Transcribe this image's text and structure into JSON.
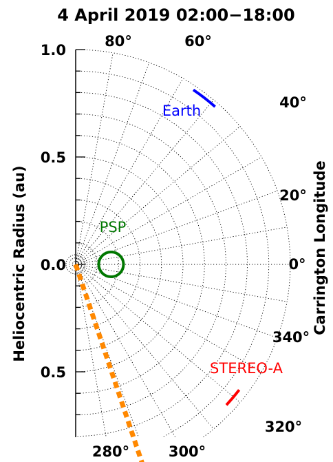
{
  "chart_data": {
    "type": "polar",
    "title": "4 April 2019 02:00−18:00",
    "ylabel": "Heliocentric Radius (au)",
    "right_label": "Carrington Longitude",
    "r_range": [
      0,
      1.0
    ],
    "rings": [
      0.1,
      0.2,
      0.3,
      0.4,
      0.5,
      0.6,
      0.7,
      0.8,
      0.9,
      1.0
    ],
    "spokes_deg": [
      -80,
      -70,
      -60,
      -50,
      -40,
      -30,
      -20,
      -10,
      0,
      10,
      20,
      30,
      40,
      50,
      60,
      70,
      80
    ],
    "ytick_labels": [
      {
        "r": 1.0,
        "side": "top",
        "text": "1.0"
      },
      {
        "r": 0.5,
        "side": "top",
        "text": "0.5"
      },
      {
        "r": 0.0,
        "side": "mid",
        "text": "0.0"
      },
      {
        "r": 0.5,
        "side": "bottom",
        "text": "0.5"
      }
    ],
    "lon_labels": [
      {
        "text": "80°",
        "angle": 80
      },
      {
        "text": "60°",
        "angle": 60
      },
      {
        "text": "40°",
        "angle": 40
      },
      {
        "text": "20°",
        "angle": 20
      },
      {
        "text": "0°",
        "angle": 0
      },
      {
        "text": "340°",
        "angle": -20
      },
      {
        "text": "320°",
        "angle": -40
      },
      {
        "text": "300°",
        "angle": -60
      },
      {
        "text": "280°",
        "angle": -80
      }
    ],
    "series": [
      {
        "name": "Earth",
        "color": "#0000ff",
        "style": "arc",
        "r": 0.98,
        "lon_start": 48.5,
        "lon_end": 56
      },
      {
        "name": "PSP",
        "color": "#007700",
        "style": "circle",
        "r": 0.165,
        "lon": 0
      },
      {
        "name": "STEREO-A",
        "color": "#ff0000",
        "style": "arc",
        "r": 0.96,
        "lon_start": -43,
        "lon_end": -37.5
      },
      {
        "name": "",
        "color": "#ff8800",
        "style": "dashed-line",
        "lon": -71.5,
        "r_start": 0.0,
        "r_end": 1.0
      }
    ]
  }
}
